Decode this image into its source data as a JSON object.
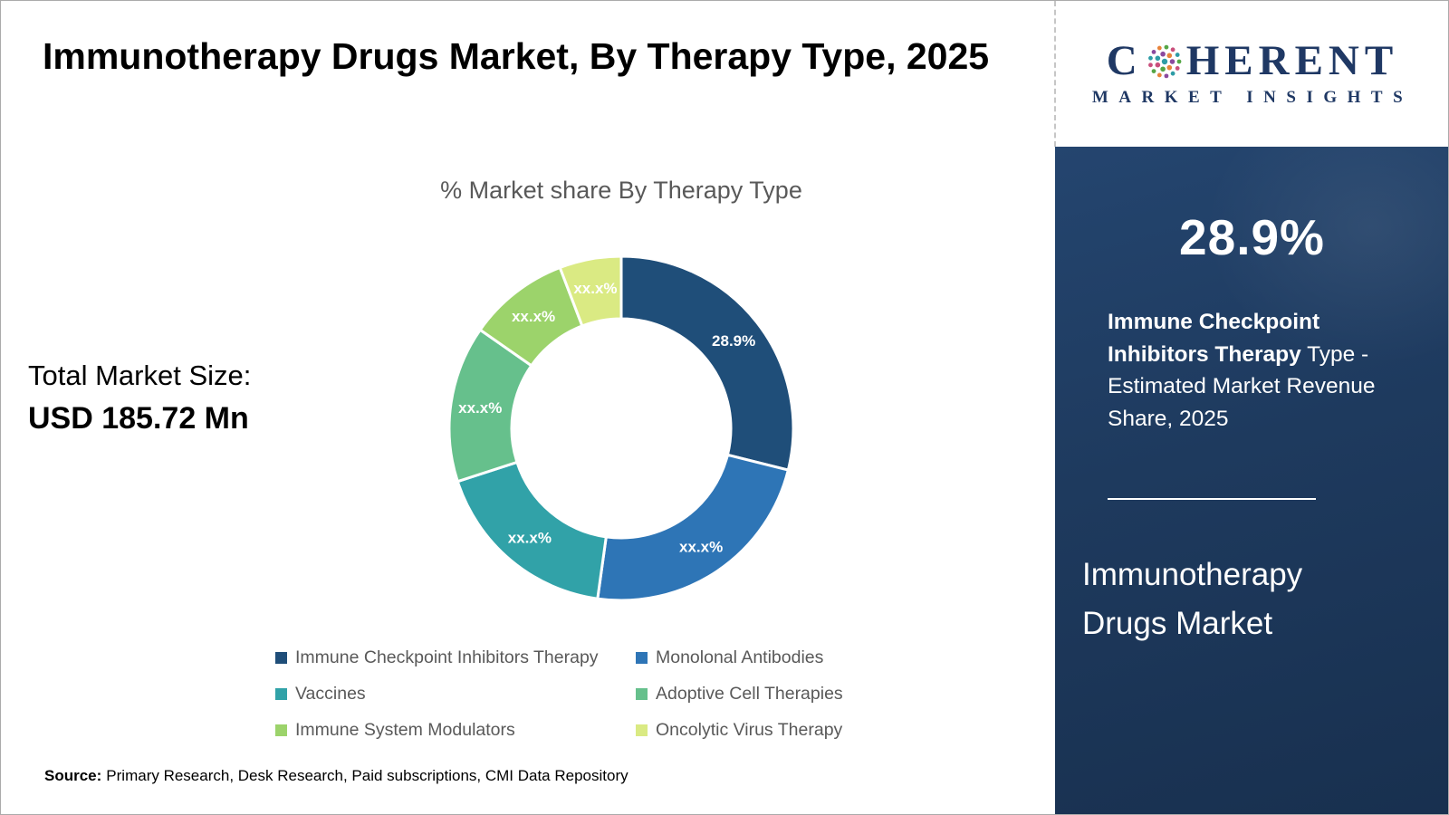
{
  "header": {
    "title": "Immunotherapy Drugs Market, By Therapy Type, 2025"
  },
  "logo": {
    "name_left": "C",
    "name_right": "HERENT",
    "tagline": "MARKET INSIGHTS",
    "text_color": "#1f3864",
    "dot_colors": [
      "#2e9ca6",
      "#8b4a9e",
      "#e8833a",
      "#55a646",
      "#c94f7c"
    ]
  },
  "main": {
    "chart_title": "% Market share By Therapy Type",
    "total_label": "Total Market Size:",
    "total_value": "USD 185.72 Mn"
  },
  "chart_data": {
    "type": "pie",
    "subtype": "donut",
    "title": "% Market share By Therapy Type",
    "legend_position": "bottom",
    "series": [
      {
        "name": "Immune Checkpoint Inhibitors Therapy",
        "value": 28.9,
        "label": "28.9%",
        "color": "#1f4e79"
      },
      {
        "name": "Monolonal Antibodies",
        "value": 23.3,
        "label": "xx.x%",
        "color": "#2e75b6"
      },
      {
        "name": "Vaccines",
        "value": 17.8,
        "label": "xx.x%",
        "color": "#31a2a8"
      },
      {
        "name": "Adoptive Cell Therapies",
        "value": 14.7,
        "label": "xx.x%",
        "color": "#66c08c"
      },
      {
        "name": "Immune System Modulators",
        "value": 9.5,
        "label": "xx.x%",
        "color": "#9cd36b"
      },
      {
        "name": "Oncolytic Virus Therapy",
        "value": 5.8,
        "label": "xx.x%",
        "color": "#daea83"
      }
    ]
  },
  "source": {
    "label": "Source:",
    "text": "Primary Research, Desk Research, Paid subscriptions, CMI Data Repository"
  },
  "sidebar": {
    "stat_value": "28.9%",
    "desc_bold": "Immune Checkpoint Inhibitors Therapy",
    "desc_rest": " Type - Estimated Market Revenue Share, 2025",
    "title": "Immunotherapy Drugs Market",
    "bg_color": "#1e3a5e"
  }
}
